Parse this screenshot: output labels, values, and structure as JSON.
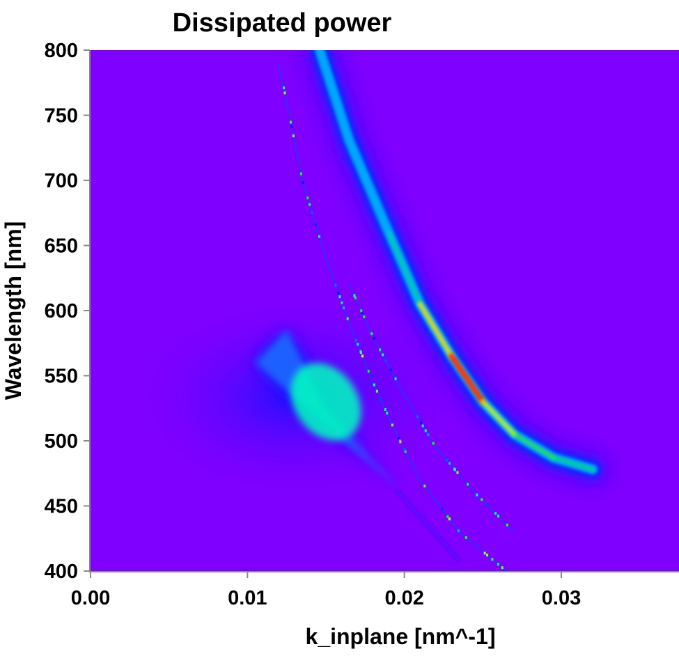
{
  "chart_data": {
    "type": "heatmap",
    "title": "Dissipated power",
    "xlabel": "k_inplane [nm^-1]",
    "ylabel": "Wavelength [nm]",
    "xlim": [
      0.0,
      0.0375
    ],
    "ylim": [
      400,
      800
    ],
    "x_ticks": [
      0.0,
      0.01,
      0.02,
      0.03
    ],
    "x_tick_labels": [
      "0.00",
      "0.01",
      "0.02",
      "0.03"
    ],
    "y_ticks": [
      400,
      450,
      500,
      550,
      600,
      650,
      700,
      750,
      800
    ],
    "y_tick_labels": [
      "400",
      "450",
      "500",
      "550",
      "600",
      "650",
      "700",
      "750",
      "800"
    ],
    "colormap": [
      "#7f00ff",
      "#0000ff",
      "#00ffff",
      "#00ff00",
      "#ffff00",
      "#ff0000"
    ],
    "background_color": "#7f00ff",
    "features": [
      {
        "name": "plasmon-lobe",
        "description_points": [
          {
            "k": 0.0105,
            "wavelength": 560
          },
          {
            "k": 0.0125,
            "wavelength": 585
          },
          {
            "k": 0.015,
            "wavelength": 525
          },
          {
            "k": 0.0175,
            "wavelength": 490
          },
          {
            "k": 0.0198,
            "wavelength": 462
          }
        ],
        "peak": {
          "k": 0.015,
          "wavelength": 530,
          "relative_intensity": 0.45
        }
      },
      {
        "name": "waveguide-mode",
        "curve": [
          {
            "k": 0.0146,
            "wavelength": 800
          },
          {
            "k": 0.0165,
            "wavelength": 730
          },
          {
            "k": 0.019,
            "wavelength": 660
          },
          {
            "k": 0.021,
            "wavelength": 605
          },
          {
            "k": 0.023,
            "wavelength": 565
          },
          {
            "k": 0.025,
            "wavelength": 530
          },
          {
            "k": 0.027,
            "wavelength": 505
          },
          {
            "k": 0.0295,
            "wavelength": 487
          },
          {
            "k": 0.032,
            "wavelength": 478
          }
        ],
        "peak": {
          "k": 0.0235,
          "wavelength": 555,
          "relative_intensity": 1.0
        }
      },
      {
        "name": "sharp-mode-a",
        "curve": [
          {
            "k": 0.012,
            "wavelength": 790
          },
          {
            "k": 0.0135,
            "wavelength": 700
          },
          {
            "k": 0.015,
            "wavelength": 640
          },
          {
            "k": 0.0165,
            "wavelength": 590
          },
          {
            "k": 0.018,
            "wavelength": 545
          },
          {
            "k": 0.0195,
            "wavelength": 505
          },
          {
            "k": 0.021,
            "wavelength": 470
          },
          {
            "k": 0.0235,
            "wavelength": 430
          },
          {
            "k": 0.0265,
            "wavelength": 400
          }
        ],
        "relative_intensity": 0.7
      },
      {
        "name": "sharp-mode-b",
        "curve": [
          {
            "k": 0.0165,
            "wavelength": 620
          },
          {
            "k": 0.018,
            "wavelength": 580
          },
          {
            "k": 0.02,
            "wavelength": 535
          },
          {
            "k": 0.022,
            "wavelength": 495
          },
          {
            "k": 0.0245,
            "wavelength": 460
          },
          {
            "k": 0.027,
            "wavelength": 430
          }
        ],
        "relative_intensity": 0.6
      },
      {
        "name": "light-line",
        "curve": [
          {
            "k": 0.0195,
            "wavelength": 462
          },
          {
            "k": 0.0215,
            "wavelength": 435
          },
          {
            "k": 0.0235,
            "wavelength": 408
          }
        ],
        "relative_intensity": 0.08
      }
    ]
  }
}
